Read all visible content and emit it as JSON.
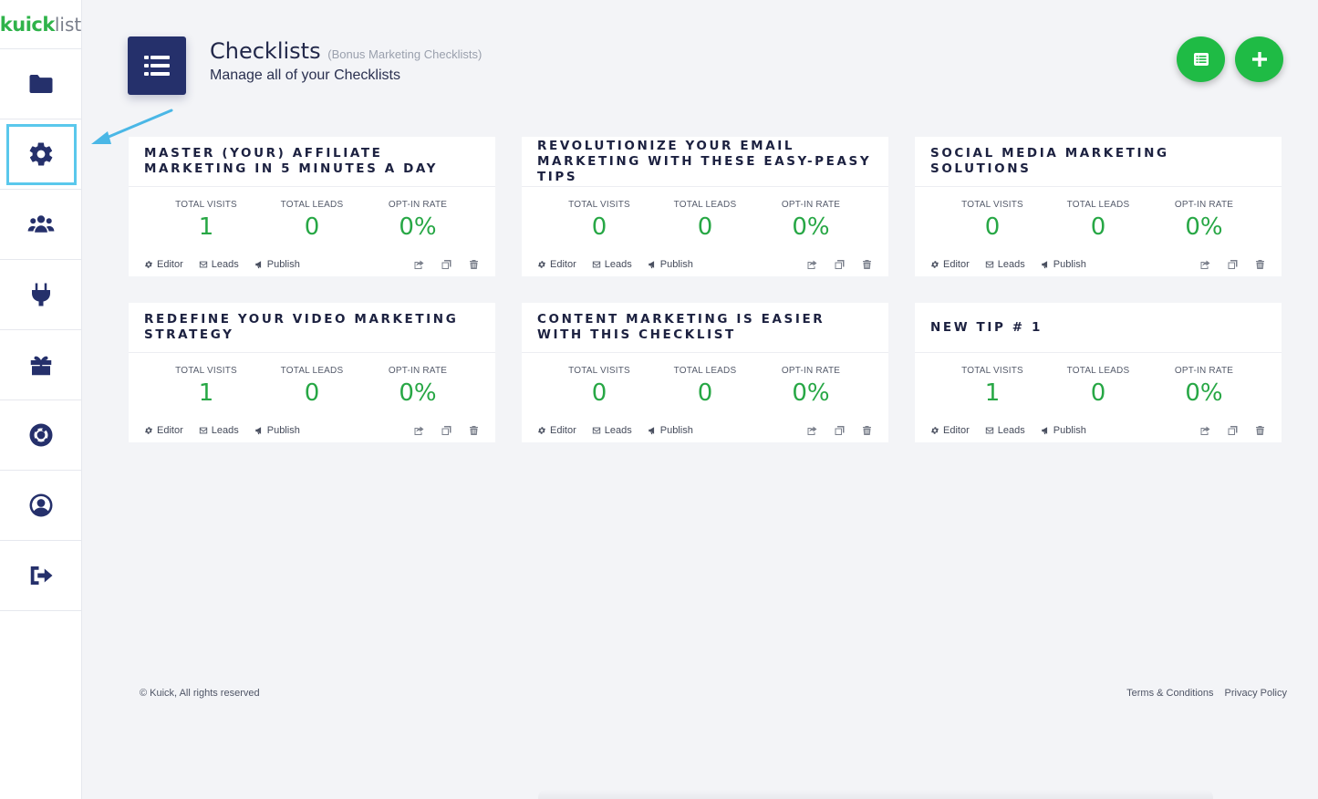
{
  "app": {
    "logo_primary": "kuick",
    "logo_secondary": "list"
  },
  "sidebar": {
    "items": [
      {
        "name": "folder-icon"
      },
      {
        "name": "gear-icon",
        "active": true
      },
      {
        "name": "users-icon"
      },
      {
        "name": "plug-icon"
      },
      {
        "name": "gift-icon"
      },
      {
        "name": "life-ring-icon"
      },
      {
        "name": "user-circle-icon"
      },
      {
        "name": "sign-out-icon"
      }
    ]
  },
  "header": {
    "title": "Checklists",
    "subtitle": "(Bonus Marketing Checklists)",
    "description": "Manage all of your Checklists",
    "icon": "list-icon"
  },
  "fabs": [
    {
      "icon": "list-alt-icon"
    },
    {
      "icon": "plus-icon"
    }
  ],
  "labels": {
    "total_visits": "TOTAL VISITS",
    "total_leads": "TOTAL LEADS",
    "optin_rate": "OPT-IN RATE",
    "editor": "Editor",
    "leads": "Leads",
    "publish": "Publish"
  },
  "cards": [
    {
      "title": "MASTER (YOUR) AFFILIATE MARKETING IN 5 MINUTES A DAY",
      "visits": "1",
      "leads": "0",
      "rate": "0%"
    },
    {
      "title": "REVOLUTIONIZE YOUR EMAIL MARKETING WITH THESE EASY-PEASY TIPS",
      "visits": "0",
      "leads": "0",
      "rate": "0%"
    },
    {
      "title": "SOCIAL MEDIA MARKETING SOLUTIONS",
      "visits": "0",
      "leads": "0",
      "rate": "0%"
    },
    {
      "title": "REDEFINE YOUR VIDEO MARKETING STRATEGY",
      "visits": "1",
      "leads": "0",
      "rate": "0%"
    },
    {
      "title": "CONTENT MARKETING IS EASIER WITH THIS CHECKLIST",
      "visits": "0",
      "leads": "0",
      "rate": "0%"
    },
    {
      "title": "NEW TIP # 1",
      "visits": "1",
      "leads": "0",
      "rate": "0%"
    }
  ],
  "footer": {
    "copyright": "© Kuick, All rights reserved",
    "terms": "Terms & Conditions",
    "privacy": "Privacy Policy"
  },
  "colors": {
    "brand_navy": "#25306b",
    "accent_green": "#1fbb45",
    "stat_green": "#27a745",
    "highlight_blue": "#5ac8ec"
  }
}
